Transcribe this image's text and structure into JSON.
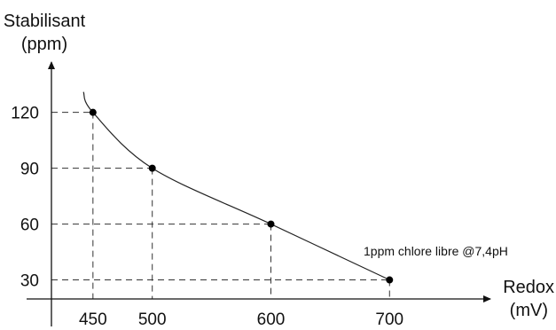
{
  "chart_data": {
    "type": "line",
    "xlabel": "Redox",
    "xunit": "(mV)",
    "ylabel": "Stabilisant",
    "yunit": "(ppm)",
    "xlim": [
      415,
      785
    ],
    "ylim": [
      5,
      147
    ],
    "x_ticks": [
      450,
      500,
      600,
      700
    ],
    "y_ticks": [
      120,
      90,
      60,
      30
    ],
    "points": [
      {
        "x": 450,
        "y": 120
      },
      {
        "x": 500,
        "y": 90
      },
      {
        "x": 600,
        "y": 60
      },
      {
        "x": 700,
        "y": 30
      }
    ],
    "curve_start": {
      "x": 442,
      "y": 131
    },
    "annotation": "1ppm chlore libre @7,4pH",
    "grid": false,
    "dashed_guides": true
  }
}
